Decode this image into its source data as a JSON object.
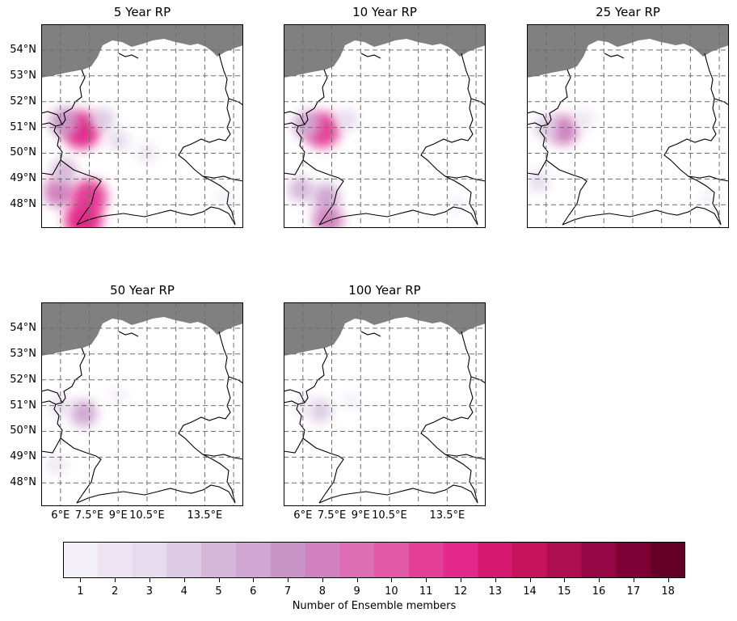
{
  "map_panels": [
    {
      "title": "5 Year RP",
      "show_lat_labels": true,
      "show_lon_labels": false,
      "hotspots": [
        {
          "lon": 7.1,
          "lat": 50.9,
          "members": 12
        },
        {
          "lon": 6.2,
          "lat": 51.2,
          "members": 7
        },
        {
          "lon": 8.2,
          "lat": 51.3,
          "members": 4
        },
        {
          "lon": 9.0,
          "lat": 50.5,
          "members": 3
        },
        {
          "lon": 5.9,
          "lat": 48.5,
          "members": 8
        },
        {
          "lon": 7.5,
          "lat": 48.3,
          "members": 11
        },
        {
          "lon": 7.2,
          "lat": 47.4,
          "members": 12
        },
        {
          "lon": 6.2,
          "lat": 49.3,
          "members": 5
        },
        {
          "lon": 10.5,
          "lat": 50.0,
          "members": 2
        },
        {
          "lon": 14.5,
          "lat": 48.2,
          "members": 1
        }
      ]
    },
    {
      "title": "10 Year RP",
      "show_lat_labels": false,
      "show_lon_labels": false,
      "hotspots": [
        {
          "lon": 7.0,
          "lat": 50.9,
          "members": 11
        },
        {
          "lon": 6.2,
          "lat": 51.1,
          "members": 6
        },
        {
          "lon": 8.3,
          "lat": 51.3,
          "members": 3
        },
        {
          "lon": 5.9,
          "lat": 48.6,
          "members": 5
        },
        {
          "lon": 7.2,
          "lat": 48.3,
          "members": 6
        },
        {
          "lon": 7.3,
          "lat": 47.4,
          "members": 8
        },
        {
          "lon": 14.0,
          "lat": 48.0,
          "members": 1
        }
      ]
    },
    {
      "title": "25 Year RP",
      "show_lat_labels": false,
      "show_lon_labels": false,
      "hotspots": [
        {
          "lon": 6.9,
          "lat": 50.9,
          "members": 8
        },
        {
          "lon": 6.0,
          "lat": 51.0,
          "members": 4
        },
        {
          "lon": 5.6,
          "lat": 48.9,
          "members": 3
        },
        {
          "lon": 8.0,
          "lat": 51.3,
          "members": 2
        },
        {
          "lon": 14.5,
          "lat": 48.2,
          "members": 1
        }
      ]
    },
    {
      "title": "50 Year RP",
      "show_lat_labels": true,
      "show_lon_labels": true,
      "hotspots": [
        {
          "lon": 7.2,
          "lat": 50.7,
          "members": 6
        },
        {
          "lon": 6.0,
          "lat": 51.0,
          "members": 3
        },
        {
          "lon": 5.8,
          "lat": 48.7,
          "members": 2
        },
        {
          "lon": 9.0,
          "lat": 51.4,
          "members": 1
        }
      ]
    },
    {
      "title": "100 Year RP",
      "show_lat_labels": false,
      "show_lon_labels": true,
      "hotspots": [
        {
          "lon": 6.9,
          "lat": 50.8,
          "members": 4
        },
        {
          "lon": 6.0,
          "lat": 51.0,
          "members": 2
        },
        {
          "lon": 8.5,
          "lat": 51.2,
          "members": 1
        }
      ]
    }
  ],
  "lat_ticks": [
    {
      "value": 48,
      "label": "48°N"
    },
    {
      "value": 49,
      "label": "49°N"
    },
    {
      "value": 50,
      "label": "50°N"
    },
    {
      "value": 51,
      "label": "51°N"
    },
    {
      "value": 52,
      "label": "52°N"
    },
    {
      "value": 53,
      "label": "53°N"
    },
    {
      "value": 54,
      "label": "54°N"
    }
  ],
  "lon_ticks": [
    {
      "value": 6.0,
      "label": "6°E"
    },
    {
      "value": 7.5,
      "label": "7.5°E"
    },
    {
      "value": 9.0,
      "label": "9°E"
    },
    {
      "value": 10.5,
      "label": "10.5°E"
    },
    {
      "value": 13.5,
      "label": "13.5°E"
    }
  ],
  "grid_lons": [
    6.0,
    7.5,
    9.0,
    10.5,
    12.0,
    13.5,
    15.0
  ],
  "grid_lats": [
    48,
    49,
    50,
    51,
    52,
    53,
    54
  ],
  "extent": {
    "lon_min": 5.0,
    "lon_max": 15.5,
    "lat_min": 47.1,
    "lat_max": 55.0
  },
  "colors": {
    "sea": "#808080",
    "border": "#000000",
    "grid": "#6e6e6e"
  },
  "colorbar": {
    "label": "Number of Ensemble members",
    "ticks": [
      "1",
      "2",
      "3",
      "4",
      "5",
      "6",
      "7",
      "8",
      "9",
      "10",
      "11",
      "12",
      "13",
      "14",
      "15",
      "16",
      "17",
      "18"
    ],
    "colors": [
      "#f4f0f7",
      "#ede6f2",
      "#e5dcee",
      "#dccbe3",
      "#d5b7d8",
      "#cfa7d2",
      "#c994c6",
      "#d081be",
      "#de6eb4",
      "#e35aa7",
      "#e43f97",
      "#e3298a",
      "#d6196f",
      "#c5145a",
      "#ad0e4d",
      "#940744",
      "#7c0034",
      "#650027"
    ]
  }
}
